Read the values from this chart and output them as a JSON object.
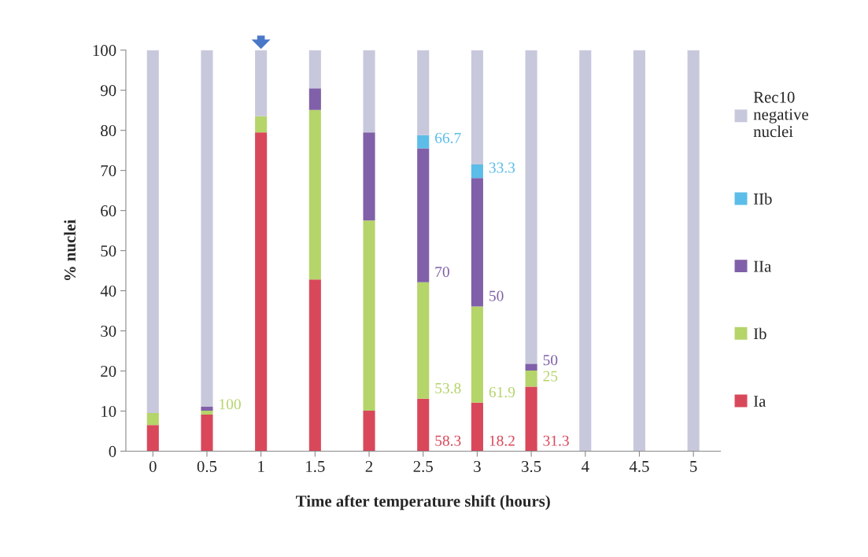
{
  "chart_data": {
    "type": "bar",
    "stacked": true,
    "xlabel": "Time after temperature shift (hours)",
    "ylabel": "% nuclei",
    "categories": [
      "0",
      "0.5",
      "1",
      "1.5",
      "2",
      "2.5",
      "3",
      "3.5",
      "4",
      "4.5",
      "5"
    ],
    "ylim": [
      0,
      100
    ],
    "yticks": [
      0,
      10,
      20,
      30,
      40,
      50,
      60,
      70,
      80,
      90,
      100
    ],
    "grid": false,
    "legend": "right",
    "series": [
      {
        "name": "Ia",
        "color": "#d9485a",
        "values": [
          6.5,
          9.1,
          79.5,
          42.8,
          10.1,
          13.1,
          12.1,
          16.1,
          null,
          null,
          null
        ]
      },
      {
        "name": "Ib",
        "color": "#b5d46a",
        "values": [
          3.0,
          1.0,
          4.0,
          42.3,
          47.4,
          29.0,
          24.0,
          4.0,
          null,
          null,
          null
        ]
      },
      {
        "name": "IIa",
        "color": "#8060a8",
        "values": [
          null,
          1.0,
          null,
          5.4,
          22.0,
          33.4,
          32.0,
          1.7,
          null,
          null,
          null
        ]
      },
      {
        "name": "IIb",
        "color": "#5bbde8",
        "values": [
          null,
          null,
          null,
          null,
          null,
          3.3,
          3.4,
          null,
          null,
          null,
          null
        ]
      },
      {
        "name": "Rec10\nnegative\nnuclei",
        "color": "#c8c8dc",
        "values": [
          90.5,
          88.9,
          16.5,
          9.5,
          20.5,
          21.2,
          28.5,
          78.2,
          100,
          100,
          100
        ]
      }
    ],
    "annotations": [
      {
        "text": "58.3",
        "x": "2.5",
        "y": 0
      },
      {
        "text": "18.2",
        "x": "3",
        "y": 0
      },
      {
        "text": "31.3",
        "x": "3.5",
        "y": 0
      },
      {
        "text": "100",
        "x": "0.5",
        "y": 9.1
      },
      {
        "text": "53.8",
        "x": "2.5",
        "y": 13.1
      },
      {
        "text": "61.9",
        "x": "3",
        "y": 12.1
      },
      {
        "text": "25",
        "x": "3.5",
        "y": 16.1
      },
      {
        "text": "70",
        "x": "2.5",
        "y": 42.1
      },
      {
        "text": "50",
        "x": "3",
        "y": 36.1
      },
      {
        "text": "50",
        "x": "3.5",
        "y": 20.1
      },
      {
        "text": "66.7",
        "x": "2.5",
        "y": 75.5
      },
      {
        "text": "33.3",
        "x": "3",
        "y": 68.1
      }
    ]
  }
}
